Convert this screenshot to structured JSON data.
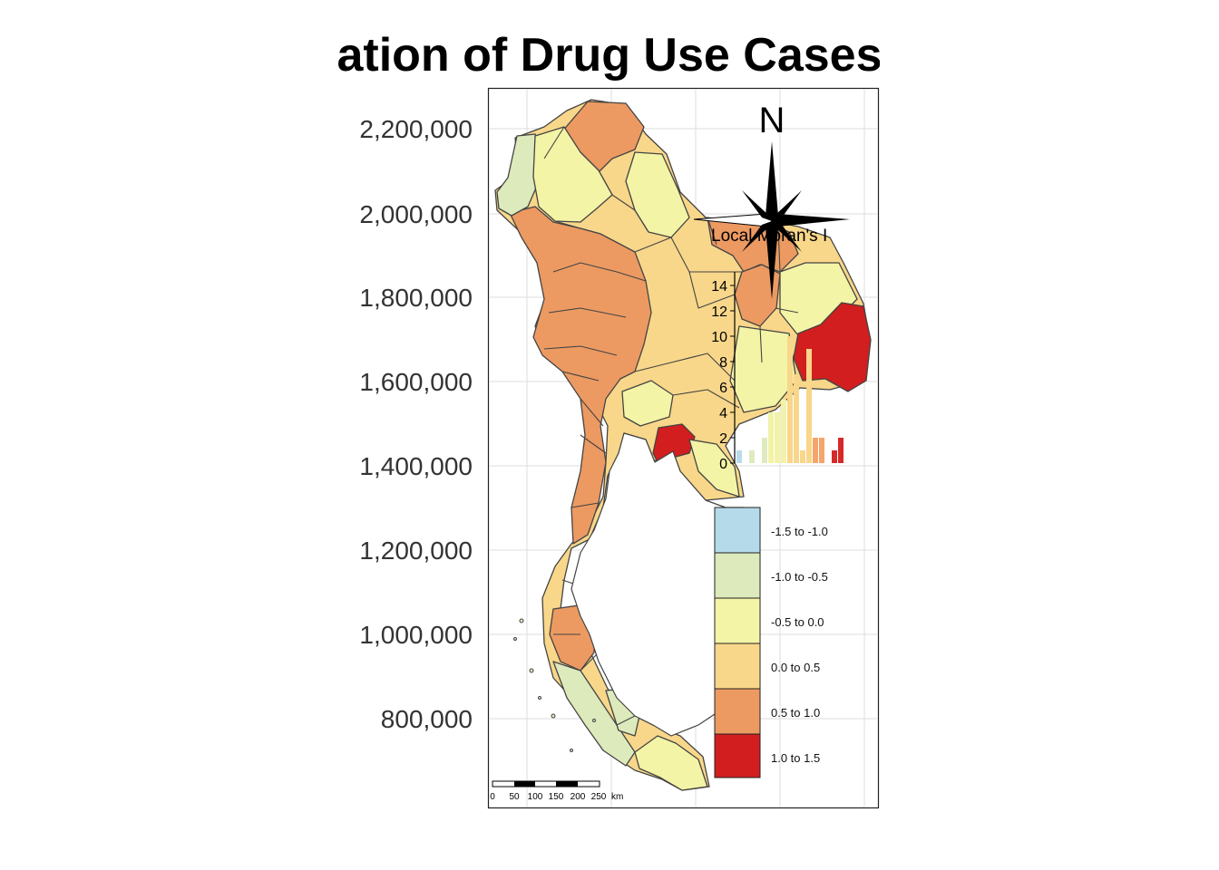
{
  "title": "ation of Drug Use Cases",
  "y_axis_ticks": [
    2200000,
    2000000,
    1800000,
    1600000,
    1400000,
    1200000,
    1000000,
    800000
  ],
  "y_axis_tick_labels": [
    "2,200,000",
    "2,000,000",
    "1,800,000",
    "1,600,000",
    "1,400,000",
    "1,200,000",
    "1,000,000",
    "800,000"
  ],
  "north_arrow_label": "N",
  "histogram": {
    "title": "Local Moran's I",
    "y_ticks": [
      "0",
      "2",
      "4",
      "6",
      "8",
      "10",
      "12",
      "14"
    ],
    "bars": [
      {
        "count": 1,
        "color": "#b7dbeb"
      },
      {
        "count": 0,
        "color": "#b7dbeb"
      },
      {
        "count": 1,
        "color": "#dfeabd"
      },
      {
        "count": 0,
        "color": "#dfeabd"
      },
      {
        "count": 2,
        "color": "#dfeabd"
      },
      {
        "count": 4,
        "color": "#f2f2a8"
      },
      {
        "count": 4,
        "color": "#f2f2a8"
      },
      {
        "count": 5,
        "color": "#f2f2a8"
      },
      {
        "count": 10,
        "color": "#f8d68a"
      },
      {
        "count": 7,
        "color": "#f8d68a"
      },
      {
        "count": 1,
        "color": "#f8d68a"
      },
      {
        "count": 9,
        "color": "#f8d68a"
      },
      {
        "count": 2,
        "color": "#f3a56c"
      },
      {
        "count": 2,
        "color": "#f3a56c"
      },
      {
        "count": 0,
        "color": "#f3a56c"
      },
      {
        "count": 1,
        "color": "#d62a28"
      },
      {
        "count": 2,
        "color": "#d62a28"
      }
    ]
  },
  "legend": [
    {
      "label": "-1.5 to -1.0",
      "color": "#b5dbeb"
    },
    {
      "label": "-1.0 to -0.5",
      "color": "#ddeabc"
    },
    {
      "label": "-0.5 to 0.0",
      "color": "#f4f4a6"
    },
    {
      "label": "0.0 to 0.5",
      "color": "#f8d78a"
    },
    {
      "label": "0.5 to 1.0",
      "color": "#ec9a62"
    },
    {
      "label": "1.0 to 1.5",
      "color": "#d21e1e"
    }
  ],
  "scale_bar": {
    "labels": [
      "0",
      "50",
      "100",
      "150",
      "200",
      "250"
    ],
    "unit": "km"
  },
  "colors": {
    "border": "#444444",
    "grid": "#dcdcdc",
    "frame": "#222222"
  }
}
